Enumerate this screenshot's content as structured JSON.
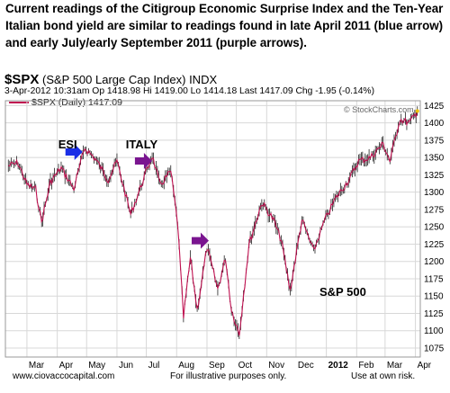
{
  "caption": "Current readings of the Citigroup Economic Surprise Index and the Ten-Year Italian bond yield are similar to readings found in late April 2011 (blue arrow) and  early July/early September 2011 (purple arrows).",
  "header": {
    "symbol": "$SPX",
    "symbol_desc": "(S&P 500 Large Cap Index) INDX",
    "quote_line": "3-Apr-2012 10:31am   Op 1418.98  Hi 1419.00  Lo 1414.18  Last 1417.09  Chg -1.95 (-0.14%)",
    "legend_label": "$SPX (Daily) 1417.09",
    "watermark": "© StockCharts.com"
  },
  "footer": {
    "site": "www.ciovaccocapital.com",
    "note": "For illustrative purposes only.",
    "risk": "Use at own risk."
  },
  "colors": {
    "price": "#c01050",
    "blue_arrow": "#1a2ee6",
    "purple_arrow": "#7a1590",
    "grid": "#d8d8d8"
  },
  "chart_data": {
    "type": "line",
    "series": [
      {
        "name": "$SPX (Daily)",
        "x": [
          "2011-02-10",
          "2011-02-20",
          "2011-03-01",
          "2011-03-10",
          "2011-03-16",
          "2011-03-25",
          "2011-04-05",
          "2011-04-18",
          "2011-04-29",
          "2011-05-10",
          "2011-05-23",
          "2011-06-01",
          "2011-06-15",
          "2011-06-22",
          "2011-07-07",
          "2011-07-15",
          "2011-07-26",
          "2011-08-02",
          "2011-08-08",
          "2011-08-15",
          "2011-08-22",
          "2011-09-01",
          "2011-09-12",
          "2011-09-20",
          "2011-09-26",
          "2011-10-04",
          "2011-10-14",
          "2011-10-27",
          "2011-11-08",
          "2011-11-16",
          "2011-11-25",
          "2011-12-07",
          "2011-12-19",
          "2011-12-30",
          "2012-01-10",
          "2012-01-25",
          "2012-02-03",
          "2012-02-15",
          "2012-02-28",
          "2012-03-06",
          "2012-03-16",
          "2012-03-26",
          "2012-04-03"
        ],
        "values": [
          1338,
          1342,
          1311,
          1304,
          1257,
          1315,
          1335,
          1305,
          1364,
          1348,
          1318,
          1345,
          1268,
          1295,
          1353,
          1310,
          1330,
          1255,
          1119,
          1205,
          1130,
          1220,
          1160,
          1205,
          1130,
          1095,
          1225,
          1285,
          1260,
          1230,
          1158,
          1260,
          1215,
          1258,
          1290,
          1320,
          1345,
          1350,
          1370,
          1345,
          1405,
          1400,
          1417
        ]
      }
    ],
    "xticks": [
      "Mar",
      "Apr",
      "May",
      "Jun",
      "Jul",
      "Aug",
      "Sep",
      "Oct",
      "Nov",
      "Dec",
      "2012",
      "Feb",
      "Mar",
      "Apr"
    ],
    "yticks": [
      1075,
      1100,
      1125,
      1150,
      1175,
      1200,
      1225,
      1250,
      1275,
      1300,
      1325,
      1350,
      1375,
      1400,
      1425
    ],
    "ylim": [
      1062,
      1432
    ],
    "grid": true,
    "annotations": [
      {
        "text": "ESI",
        "x": "2011-04-02",
        "y": 1363
      },
      {
        "text": "ITALY",
        "x": "2011-06-10",
        "y": 1363
      },
      {
        "text": "S&P 500",
        "x": "2011-12-25",
        "y": 1150
      }
    ],
    "arrows": [
      {
        "color": "blue",
        "x": "2011-04-25",
        "y": 1358
      },
      {
        "color": "purple",
        "x": "2011-07-05",
        "y": 1345
      },
      {
        "color": "purple",
        "x": "2011-09-01",
        "y": 1230
      }
    ]
  }
}
